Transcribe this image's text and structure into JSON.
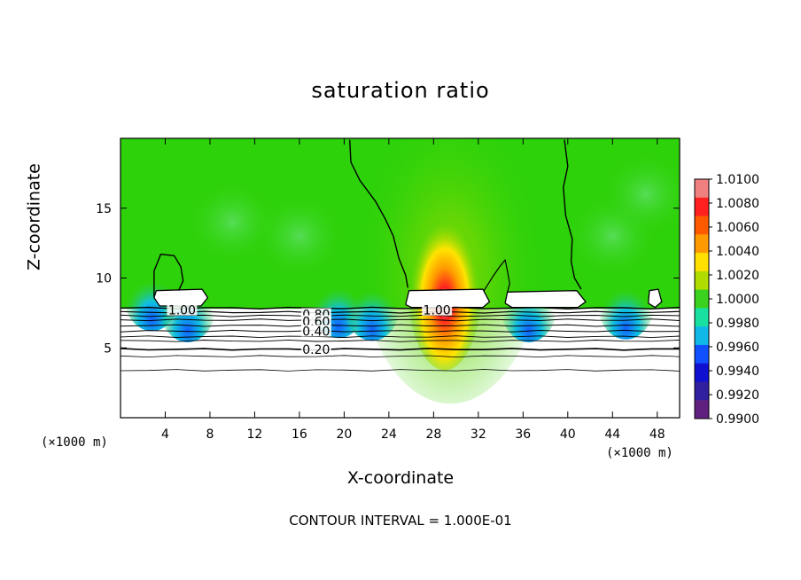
{
  "chart_data": {
    "type": "heatmap",
    "title": "saturation ratio",
    "xlabel": "X-coordinate",
    "ylabel": "Z-coordinate",
    "x_unit": "(×1000 m)",
    "x_unit_right": "(×1000 m)",
    "xlim": [
      0,
      50
    ],
    "ylim": [
      0,
      20
    ],
    "x_ticks": [
      4,
      8,
      12,
      16,
      20,
      24,
      28,
      32,
      36,
      40,
      44,
      48
    ],
    "y_ticks": [
      5,
      10,
      15
    ],
    "colorbar": {
      "min": 0.99,
      "max": 1.01,
      "tick_labels": [
        "1.0100",
        "1.0080",
        "1.0060",
        "1.0040",
        "1.0020",
        "1.0000",
        "0.9980",
        "0.9960",
        "0.9940",
        "0.9920",
        "0.9900"
      ],
      "colors": [
        "#f08080",
        "#ff2020",
        "#ff5a00",
        "#ff9900",
        "#ffe000",
        "#b0dc00",
        "#3ad21e",
        "#18e0a0",
        "#10b8e8",
        "#1050ff",
        "#1010d0",
        "#3020a0",
        "#602080"
      ]
    },
    "contour_labels": [
      {
        "text": "1.00",
        "x": 5.5,
        "y": 7.7
      },
      {
        "text": "1.00",
        "x": 28.3,
        "y": 7.7
      },
      {
        "text": "0.80",
        "x": 17.5,
        "y": 7.4
      },
      {
        "text": "0.60",
        "x": 17.5,
        "y": 6.9
      },
      {
        "text": "0.40",
        "x": 17.5,
        "y": 6.2
      },
      {
        "text": "0.20",
        "x": 17.5,
        "y": 4.9
      }
    ],
    "footnote": "CONTOUR INTERVAL = 1.000E-01"
  }
}
